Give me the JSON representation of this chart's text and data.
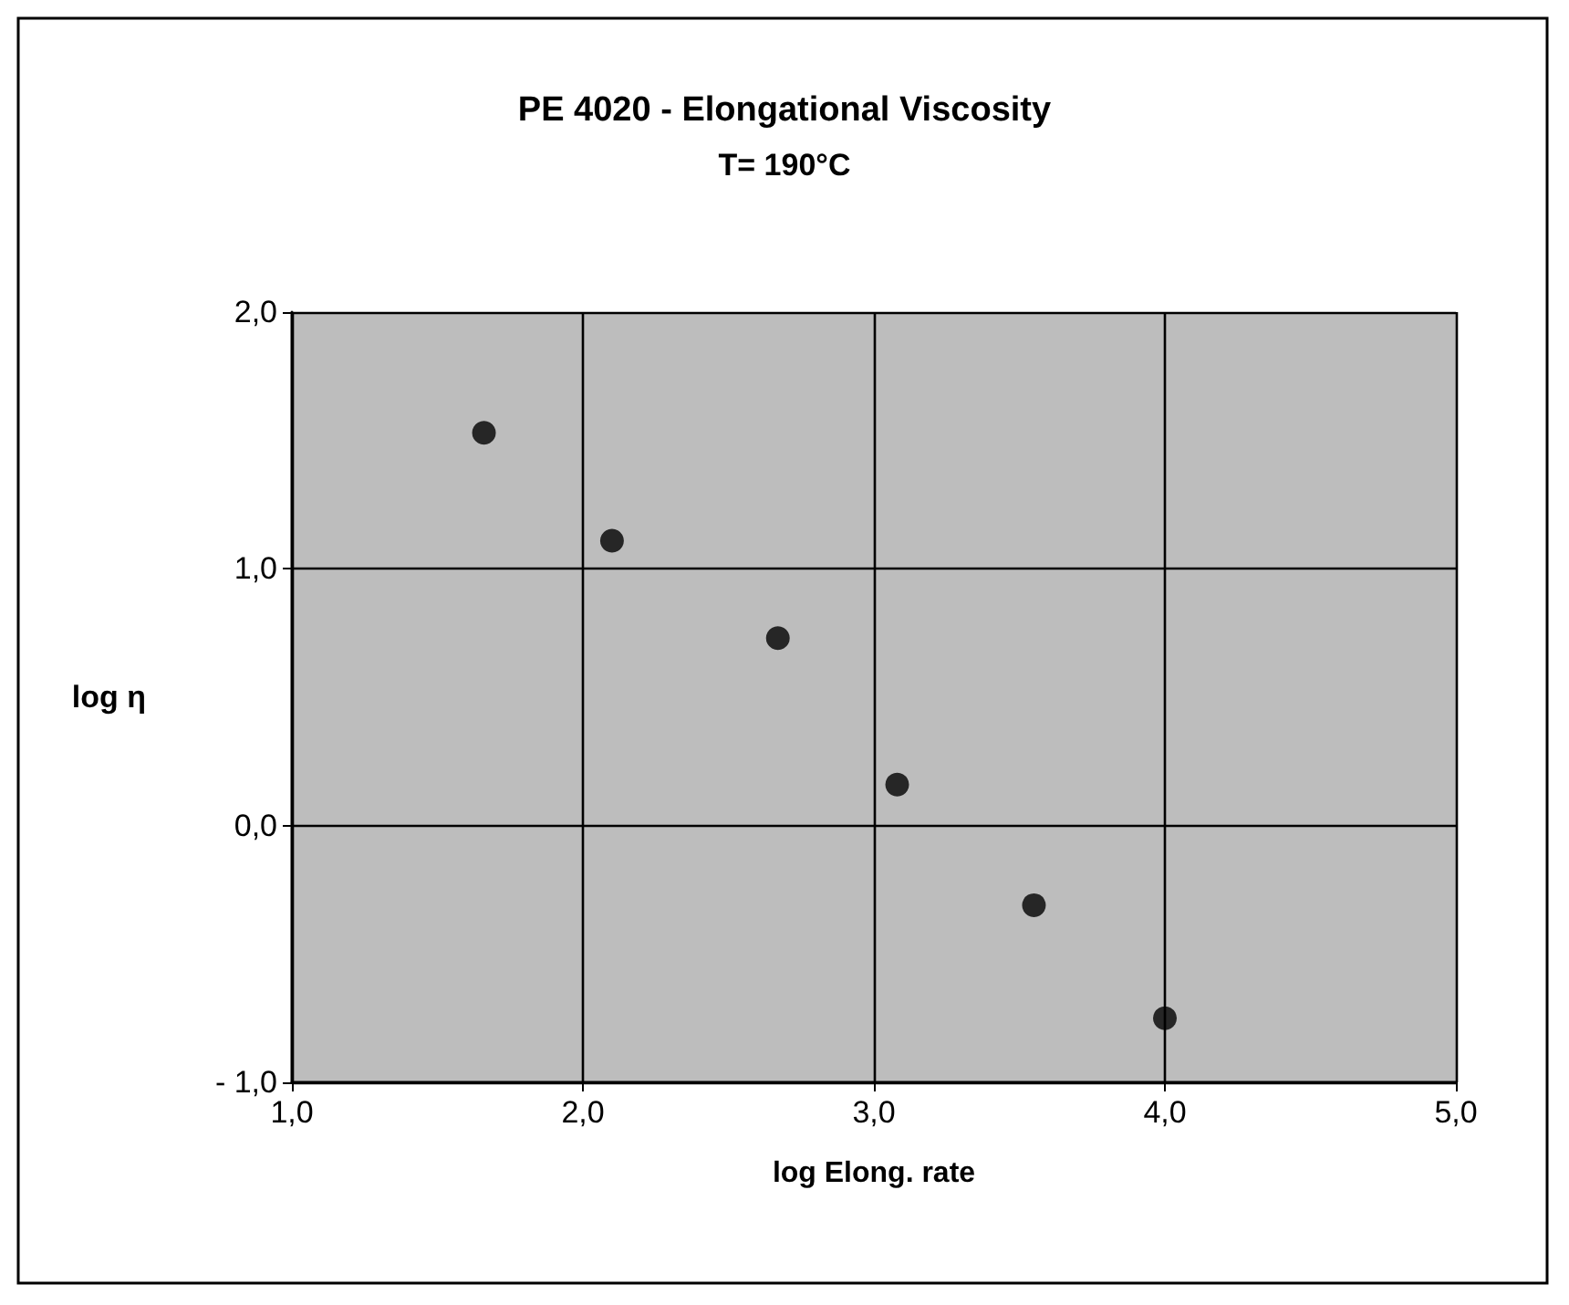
{
  "chart_data": {
    "type": "scatter",
    "title": "PE 4020 - Elongational Viscosity",
    "subtitle": "T= 190°C",
    "xlabel": "log Elong. rate",
    "ylabel": "log η",
    "x": [
      1.66,
      2.1,
      2.67,
      3.08,
      3.55,
      4.0
    ],
    "series": [
      {
        "color": "#000000",
        "values": [
          1.53,
          1.11,
          0.73,
          0.16,
          -0.31,
          -0.75
        ]
      }
    ],
    "xlim": [
      1,
      5
    ],
    "xticks": [
      {
        "value": 1,
        "label": "1,0"
      },
      {
        "value": 2,
        "label": "2,0"
      },
      {
        "value": 3,
        "label": "3,0"
      },
      {
        "value": 4,
        "label": "4,0"
      },
      {
        "value": 5,
        "label": "5,0"
      }
    ],
    "ylim": [
      -1,
      2
    ],
    "yticks": [
      {
        "value": -1,
        "label": "- 1,0"
      },
      {
        "value": 0,
        "label": "0,0"
      },
      {
        "value": 1,
        "label": "1,0"
      },
      {
        "value": 2,
        "label": "2,0"
      }
    ],
    "grid": true,
    "marker": "circle"
  }
}
